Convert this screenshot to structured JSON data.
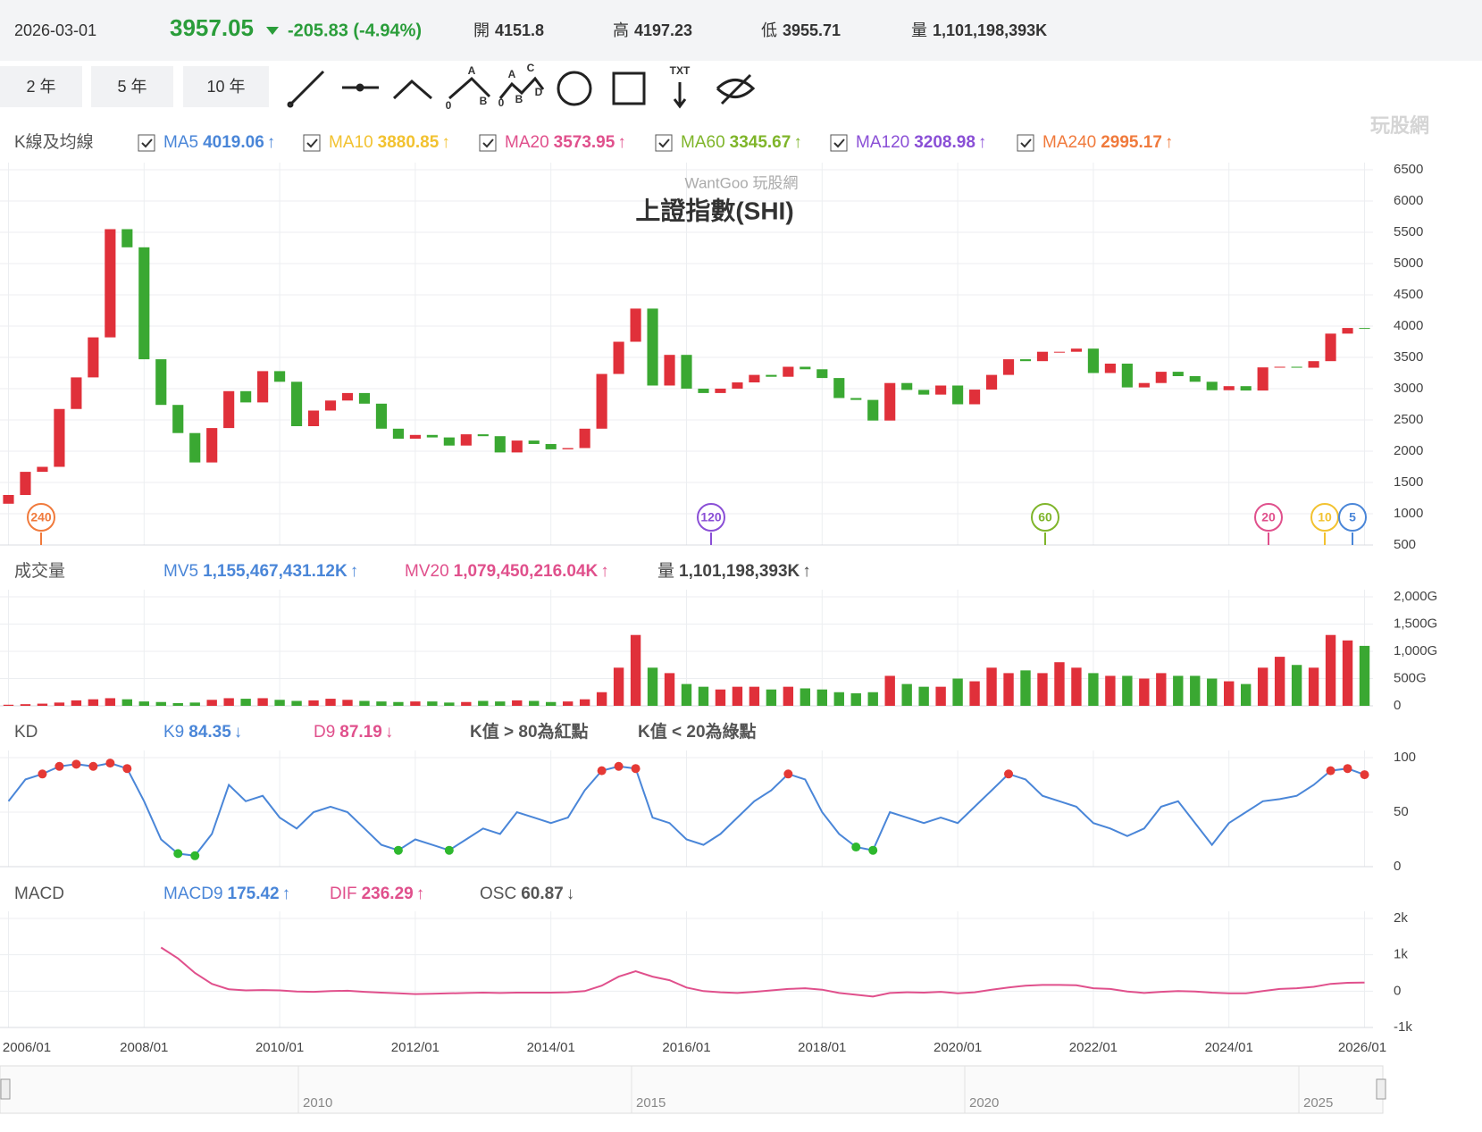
{
  "header": {
    "date": "2026-03-01",
    "price": 3957.05,
    "change": "-205.83 (-4.94%)",
    "stats": [
      {
        "label": "開",
        "value": "4151.8"
      },
      {
        "label": "高",
        "value": "4197.23"
      },
      {
        "label": "低",
        "value": "3955.71"
      },
      {
        "label": "量",
        "value": "1,101,198,393K"
      }
    ]
  },
  "toolbar": {
    "ranges": [
      "2 年",
      "5 年",
      "10 年"
    ],
    "fib_labels": [
      "A",
      "B",
      "0"
    ],
    "wave_labels": [
      "A",
      "C",
      "B",
      "D",
      "0"
    ],
    "text_tool": "TXT"
  },
  "brand": "玩股網",
  "chart_data": [
    {
      "type": "candlestick",
      "title": "上證指數(SHI)",
      "subtitle": "WantGoo 玩股網",
      "panel_label": "K線及均線",
      "ma": [
        {
          "name": "MA5",
          "value": 4019.06,
          "trend": "↑",
          "color": "#4a86d8"
        },
        {
          "name": "MA10",
          "value": 3880.85,
          "trend": "↑",
          "color": "#f2c230"
        },
        {
          "name": "MA20",
          "value": 3573.95,
          "trend": "↑",
          "color": "#e0508c"
        },
        {
          "name": "MA60",
          "value": 3345.67,
          "trend": "↑",
          "color": "#7fb52a"
        },
        {
          "name": "MA120",
          "value": 3208.98,
          "trend": "↑",
          "color": "#8a4fd6"
        },
        {
          "name": "MA240",
          "value": 2995.17,
          "trend": "↑",
          "color": "#f07a3c"
        }
      ],
      "badges": [
        "240",
        "120",
        "60",
        "20",
        "10",
        "5"
      ],
      "up_color": "#e0303a",
      "down_color": "#3aa832",
      "open": [
        1160,
        1300,
        1670,
        1750,
        2675,
        3180,
        3820,
        5550,
        5260,
        3470,
        2740,
        2290,
        1820,
        2370,
        2960,
        2780,
        3280,
        3110,
        2400,
        2650,
        2810,
        2930,
        2760,
        2360,
        2200,
        2260,
        2220,
        2090,
        2270,
        2240,
        1980,
        2170,
        2115,
        2030,
        2050,
        2360,
        3235,
        3750,
        4280,
        3050,
        3540,
        3000,
        2930,
        3000,
        3100,
        3220,
        3190,
        3350,
        3310,
        3170,
        2850,
        2820,
        2490,
        3090,
        2980,
        2905,
        3050,
        2750,
        2985,
        3220,
        3470,
        3440,
        3590,
        3590,
        3640,
        3250,
        3400,
        3020,
        3090,
        3270,
        3200,
        3110,
        2975,
        3040,
        2970,
        3340,
        3350,
        3335,
        3440,
        3880,
        3970
      ],
      "close": [
        1300,
        1670,
        1750,
        2675,
        3180,
        3820,
        5550,
        5260,
        3470,
        2740,
        2290,
        1820,
        2370,
        2960,
        2780,
        3280,
        3110,
        2400,
        2650,
        2810,
        2930,
        2760,
        2360,
        2200,
        2260,
        2220,
        2090,
        2270,
        2240,
        1980,
        2170,
        2115,
        2030,
        2050,
        2360,
        3235,
        3750,
        4280,
        3050,
        3540,
        3000,
        2930,
        3000,
        3100,
        3220,
        3190,
        3350,
        3310,
        3170,
        2850,
        2820,
        2490,
        3090,
        2980,
        2905,
        3050,
        2750,
        2985,
        3220,
        3470,
        3440,
        3590,
        3590,
        3640,
        3250,
        3400,
        3020,
        3090,
        3270,
        3200,
        3110,
        2975,
        3040,
        2970,
        3340,
        3350,
        3335,
        3440,
        3880,
        3970,
        3957.05
      ],
      "ylim": [
        500,
        6500
      ],
      "yticks": [
        500,
        1000,
        1500,
        2000,
        2500,
        3000,
        3500,
        4000,
        4500,
        5000,
        5500,
        6000,
        6500
      ],
      "grid": true
    },
    {
      "type": "bar",
      "panel_label": "成交量",
      "legend": [
        {
          "name": "MV5",
          "value": "1,155,467,431.12K",
          "trend": "↑",
          "color": "#4a86d8"
        },
        {
          "name": "MV20",
          "value": "1,079,450,216.04K",
          "trend": "↑",
          "color": "#e0508c"
        },
        {
          "name": "量",
          "value": "1,101,198,393K",
          "trend": "↑",
          "color": "#444444"
        }
      ],
      "values": [
        20,
        30,
        40,
        60,
        100,
        120,
        140,
        120,
        80,
        70,
        50,
        60,
        110,
        140,
        130,
        140,
        110,
        90,
        100,
        130,
        110,
        90,
        80,
        70,
        80,
        80,
        60,
        70,
        90,
        80,
        100,
        90,
        70,
        80,
        120,
        250,
        700,
        1300,
        700,
        600,
        400,
        350,
        300,
        350,
        350,
        300,
        350,
        320,
        300,
        250,
        230,
        250,
        550,
        400,
        350,
        350,
        500,
        450,
        700,
        600,
        650,
        600,
        800,
        700,
        600,
        550,
        550,
        500,
        600,
        550,
        550,
        500,
        450,
        400,
        700,
        900,
        750,
        700,
        1300,
        1200,
        1100
      ],
      "ylim": [
        0,
        2000
      ],
      "yticks": [
        0,
        {
          "value": 500,
          "label": "500G"
        },
        {
          "value": 1000,
          "label": "1,000G"
        },
        {
          "value": 1500,
          "label": "1,500G"
        },
        {
          "value": 2000,
          "label": "2,000G"
        }
      ]
    },
    {
      "type": "line",
      "panel_label": "KD",
      "legend": [
        {
          "name": "K9",
          "value": 84.35,
          "trend": "↓",
          "color": "#4a86d8"
        },
        {
          "name": "D9",
          "value": 87.19,
          "trend": "↓",
          "color": "#e0508c"
        }
      ],
      "notes": [
        "K值 > 80為紅點",
        "K值 < 20為綠點"
      ],
      "dot_high": 80,
      "dot_low": 20,
      "dot_high_color": "#e53935",
      "dot_low_color": "#2eb82e",
      "series": [
        {
          "name": "K9",
          "color": "#4a86d8",
          "values": [
            60,
            80,
            85,
            92,
            94,
            92,
            95,
            90,
            60,
            25,
            12,
            10,
            30,
            75,
            60,
            65,
            45,
            35,
            50,
            55,
            50,
            35,
            20,
            15,
            25,
            20,
            15,
            25,
            35,
            30,
            50,
            45,
            40,
            45,
            70,
            88,
            92,
            90,
            45,
            40,
            25,
            20,
            30,
            45,
            60,
            70,
            85,
            80,
            50,
            30,
            18,
            15,
            50,
            45,
            40,
            45,
            40,
            55,
            70,
            85,
            80,
            65,
            60,
            55,
            40,
            35,
            28,
            35,
            55,
            60,
            40,
            20,
            40,
            50,
            60,
            62,
            65,
            75,
            88,
            90,
            84.35
          ]
        }
      ],
      "ylim": [
        0,
        100
      ],
      "yticks": [
        0,
        50,
        100
      ]
    },
    {
      "type": "line",
      "panel_label": "MACD",
      "legend": [
        {
          "name": "MACD9",
          "value": 175.42,
          "trend": "↑",
          "color": "#4a86d8"
        },
        {
          "name": "DIF",
          "value": 236.29,
          "trend": "↑",
          "color": "#e0508c"
        },
        {
          "name": "OSC",
          "value": 60.87,
          "trend": "↓",
          "color": "#555555"
        }
      ],
      "categories": [
        "2006/01",
        null,
        null,
        null,
        null,
        null,
        null,
        null,
        "2008/01",
        null,
        null,
        null,
        null,
        null,
        null,
        null,
        "2010/01",
        null,
        null,
        null,
        null,
        null,
        null,
        null,
        "2012/01",
        null,
        null,
        null,
        null,
        null,
        null,
        null,
        "2014/01",
        null,
        null,
        null,
        null,
        null,
        null,
        null,
        "2016/01",
        null,
        null,
        null,
        null,
        null,
        null,
        null,
        "2018/01",
        null,
        null,
        null,
        null,
        null,
        null,
        null,
        "2020/01",
        null,
        null,
        null,
        null,
        null,
        null,
        null,
        "2022/01",
        null,
        null,
        null,
        null,
        null,
        null,
        null,
        "2024/01",
        null,
        null,
        null,
        null,
        null,
        null,
        null,
        "2026/01"
      ],
      "series": [
        {
          "name": "DIF",
          "color": "#e0508c",
          "values": [
            null,
            null,
            null,
            null,
            null,
            null,
            null,
            null,
            null,
            1200,
            900,
            500,
            200,
            50,
            20,
            30,
            20,
            -10,
            -20,
            0,
            10,
            -20,
            -40,
            -60,
            -80,
            -70,
            -60,
            -50,
            -40,
            -50,
            -40,
            -40,
            -40,
            -30,
            0,
            150,
            400,
            550,
            400,
            300,
            100,
            0,
            -30,
            -50,
            -20,
            20,
            60,
            80,
            40,
            -50,
            -100,
            -150,
            -50,
            -30,
            -40,
            -20,
            -60,
            -30,
            40,
            100,
            150,
            170,
            170,
            160,
            80,
            60,
            -10,
            -50,
            -20,
            0,
            -10,
            -40,
            -60,
            -60,
            0,
            60,
            80,
            120,
            200,
            230,
            236.29
          ]
        }
      ],
      "ylim": [
        -1000,
        2000
      ],
      "yticks": [
        {
          "value": -1000,
          "label": "-1k"
        },
        0,
        {
          "value": 1000,
          "label": "1k"
        },
        {
          "value": 2000,
          "label": "2k"
        }
      ]
    }
  ],
  "navigator": {
    "labels": [
      "2010",
      "2015",
      "2020",
      "2025"
    ]
  }
}
